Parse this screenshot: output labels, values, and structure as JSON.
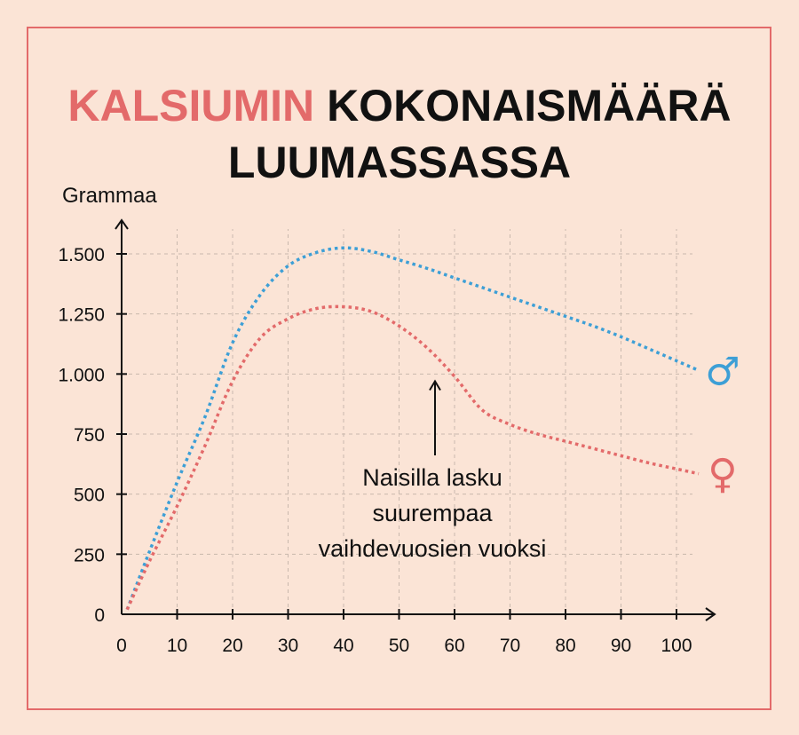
{
  "colors": {
    "background": "#fbe4d6",
    "accent": "#e36a6a",
    "male": "#3d9fd6",
    "female": "#e36a6a",
    "text": "#111111",
    "grid": "#c9b8ad"
  },
  "title": {
    "highlight": "KALSIUMIN",
    "rest_line1": "KOKONAISMÄÄRÄ",
    "line2": "LUUMASSASSA"
  },
  "chart_data": {
    "type": "line",
    "ylabel": "Grammaa",
    "xlabel": "",
    "xlim": [
      0,
      105
    ],
    "ylim": [
      0,
      1500
    ],
    "x_ticks": [
      0,
      10,
      20,
      30,
      40,
      50,
      60,
      70,
      80,
      90,
      100
    ],
    "y_ticks": [
      0,
      250,
      500,
      750,
      1000,
      1250,
      1500
    ],
    "y_tick_labels": [
      "0",
      "250",
      "500",
      "750",
      "1.000",
      "1.250",
      "1.500"
    ],
    "grid": true,
    "series": [
      {
        "symbol": "♂",
        "color": "#3d9fd6",
        "x": [
          1,
          5,
          10,
          15,
          20,
          25,
          30,
          35,
          40,
          45,
          50,
          55,
          60,
          65,
          70,
          75,
          80,
          85,
          90,
          95,
          100,
          104
        ],
        "y": [
          20,
          260,
          550,
          820,
          1130,
          1330,
          1450,
          1505,
          1525,
          1510,
          1475,
          1440,
          1400,
          1360,
          1320,
          1280,
          1240,
          1200,
          1155,
          1105,
          1055,
          1015
        ]
      },
      {
        "symbol": "♀",
        "color": "#e36a6a",
        "x": [
          1,
          5,
          10,
          15,
          20,
          25,
          30,
          35,
          40,
          45,
          50,
          55,
          60,
          65,
          70,
          75,
          80,
          85,
          90,
          95,
          100,
          104
        ],
        "y": [
          20,
          220,
          450,
          700,
          970,
          1150,
          1230,
          1272,
          1280,
          1260,
          1200,
          1110,
          990,
          850,
          790,
          750,
          720,
          690,
          660,
          630,
          605,
          585
        ]
      }
    ],
    "annotation": {
      "lines": [
        "Naisilla lasku",
        "suurempaa",
        "vaihdevuosien vuoksi"
      ],
      "arrow_to": [
        56,
        970
      ]
    }
  }
}
